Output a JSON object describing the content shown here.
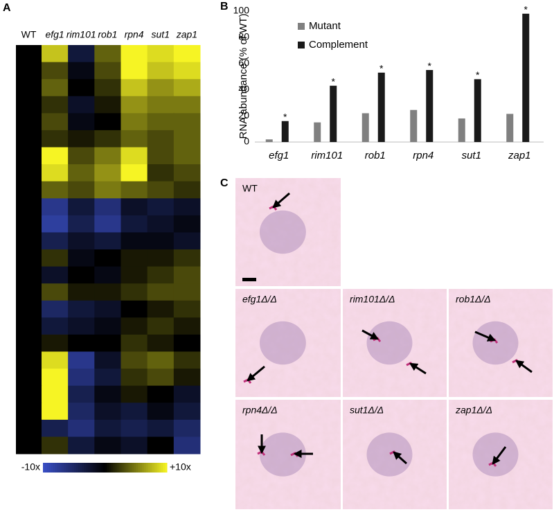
{
  "chart_data": [
    {
      "type": "heatmap",
      "panel_label": "A",
      "columns": [
        "WT",
        "efg1",
        "rim101",
        "rob1",
        "rpn4",
        "sut1",
        "zap1"
      ],
      "values": [
        [
          0,
          8,
          -3,
          4,
          10,
          9,
          10
        ],
        [
          0,
          3,
          -1,
          3,
          10,
          8,
          9
        ],
        [
          0,
          4,
          0,
          2,
          8,
          6,
          7
        ],
        [
          0,
          2,
          -2,
          1,
          6,
          5,
          5
        ],
        [
          0,
          3,
          -1,
          0,
          5,
          4,
          4
        ],
        [
          0,
          2,
          1,
          2,
          4,
          3,
          4
        ],
        [
          0,
          10,
          3,
          5,
          9,
          3,
          4
        ],
        [
          0,
          9,
          4,
          6,
          10,
          2,
          3
        ],
        [
          0,
          4,
          3,
          5,
          4,
          3,
          2
        ],
        [
          0,
          -7,
          -3,
          -6,
          -2,
          -3,
          -2
        ],
        [
          0,
          -8,
          -4,
          -7,
          -3,
          -2,
          -1
        ],
        [
          0,
          -4,
          -2,
          -3,
          -1,
          -1,
          -2
        ],
        [
          0,
          2,
          -1,
          0,
          1,
          1,
          2
        ],
        [
          0,
          -2,
          0,
          -1,
          1,
          2,
          3
        ],
        [
          0,
          3,
          1,
          1,
          2,
          3,
          3
        ],
        [
          0,
          -5,
          -3,
          -2,
          0,
          1,
          2
        ],
        [
          0,
          -3,
          -2,
          -1,
          1,
          2,
          1
        ],
        [
          0,
          1,
          0,
          0,
          2,
          1,
          0
        ],
        [
          0,
          9,
          -7,
          -2,
          3,
          4,
          2
        ],
        [
          0,
          10,
          -6,
          -3,
          2,
          3,
          1
        ],
        [
          0,
          10,
          -4,
          -1,
          1,
          0,
          -2
        ],
        [
          0,
          10,
          -5,
          -2,
          -3,
          -1,
          -3
        ],
        [
          0,
          -4,
          -6,
          -3,
          -4,
          -3,
          -5
        ],
        [
          0,
          2,
          -3,
          -1,
          -2,
          0,
          -6
        ]
      ],
      "colormap": [
        "#3a4fc6",
        "#000000",
        "#f6f424"
      ],
      "clim": [
        -10,
        10
      ],
      "cticks": [
        {
          "value": -10,
          "label": "-10x"
        },
        {
          "value": 10,
          "label": "+10x"
        }
      ]
    },
    {
      "type": "bar",
      "panel_label": "B",
      "ylabel": "RNA abundance (% of WT)",
      "categories": [
        "efg1",
        "rim101",
        "rob1",
        "rpn4",
        "sut1",
        "zap1"
      ],
      "series": [
        {
          "name": "Mutant",
          "color": "#808080",
          "values": [
            2,
            15,
            22,
            24.5,
            18,
            21.5
          ]
        },
        {
          "name": "Complement",
          "color": "#1a1a1a",
          "values": [
            16,
            43,
            53,
            55,
            48,
            98
          ],
          "annotations": [
            "*",
            "*",
            "*",
            "*",
            "*",
            "*"
          ]
        }
      ],
      "ylim": [
        0,
        100
      ],
      "yticks": [
        0,
        20,
        40,
        60,
        80,
        100
      ],
      "legend": "upper left"
    }
  ],
  "images": {
    "panel_label": "C",
    "tiles": [
      "WT",
      "efg1Δ/Δ",
      "rim101Δ/Δ",
      "rob1Δ/Δ",
      "rpn4Δ/Δ",
      "sut1Δ/Δ",
      "zap1Δ/Δ"
    ]
  }
}
